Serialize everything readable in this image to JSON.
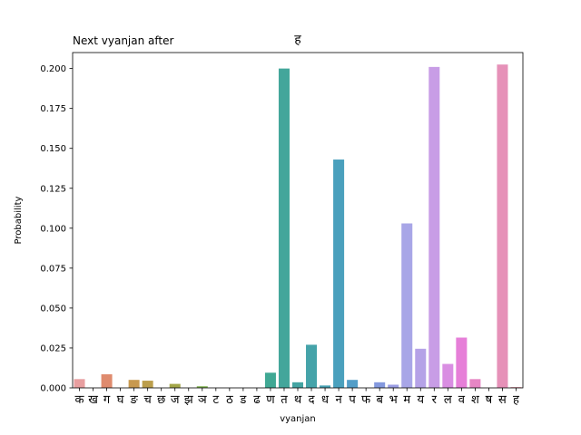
{
  "chart_data": {
    "type": "bar",
    "title": "Next vyanjan after",
    "title_right": "ह",
    "xlabel": "vyanjan",
    "ylabel": "Probability",
    "ylim": [
      0,
      0.21
    ],
    "yticks": [
      "0.000",
      "0.025",
      "0.050",
      "0.075",
      "0.100",
      "0.125",
      "0.150",
      "0.175",
      "0.200"
    ],
    "grid": false,
    "categories": [
      "क",
      "ख",
      "ग",
      "घ",
      "ङ",
      "च",
      "छ",
      "ज",
      "झ",
      "ञ",
      "ट",
      "ठ",
      "ड",
      "ढ",
      "ण",
      "त",
      "थ",
      "द",
      "ध",
      "न",
      "प",
      "फ",
      "ब",
      "भ",
      "म",
      "य",
      "र",
      "ल",
      "व",
      "श",
      "ष",
      "स",
      "ह"
    ],
    "values": [
      0.0055,
      0.0,
      0.0085,
      0.0,
      0.005,
      0.0045,
      0.0,
      0.0025,
      0.0,
      0.001,
      0.0,
      0.0,
      0.0,
      0.0,
      0.0095,
      0.2,
      0.0035,
      0.027,
      0.0015,
      0.143,
      0.005,
      0.0,
      0.0035,
      0.002,
      0.103,
      0.0245,
      0.201,
      0.015,
      0.0315,
      0.0055,
      0.0,
      0.2025,
      0.0005
    ],
    "colors": [
      "#e89fa0",
      "#e29a8b",
      "#df8b6e",
      "#d5915d",
      "#c8994f",
      "#bb9e4c",
      "#ae9f48",
      "#a2a548",
      "#94ac49",
      "#7eb24e",
      "#5fb65a",
      "#45b56f",
      "#3fb080",
      "#3fac8c",
      "#40a894",
      "#43a69b",
      "#44a4a2",
      "#45a3a9",
      "#47a1b2",
      "#4aa0bd",
      "#539ec8",
      "#6a9ad4",
      "#8499de",
      "#9a9de4",
      "#a8a6e7",
      "#b5a2e7",
      "#c89de6",
      "#d98ee2",
      "#e67fd8",
      "#e686c4",
      "#e68db3",
      "#e691b8",
      "#e89aa8"
    ]
  }
}
